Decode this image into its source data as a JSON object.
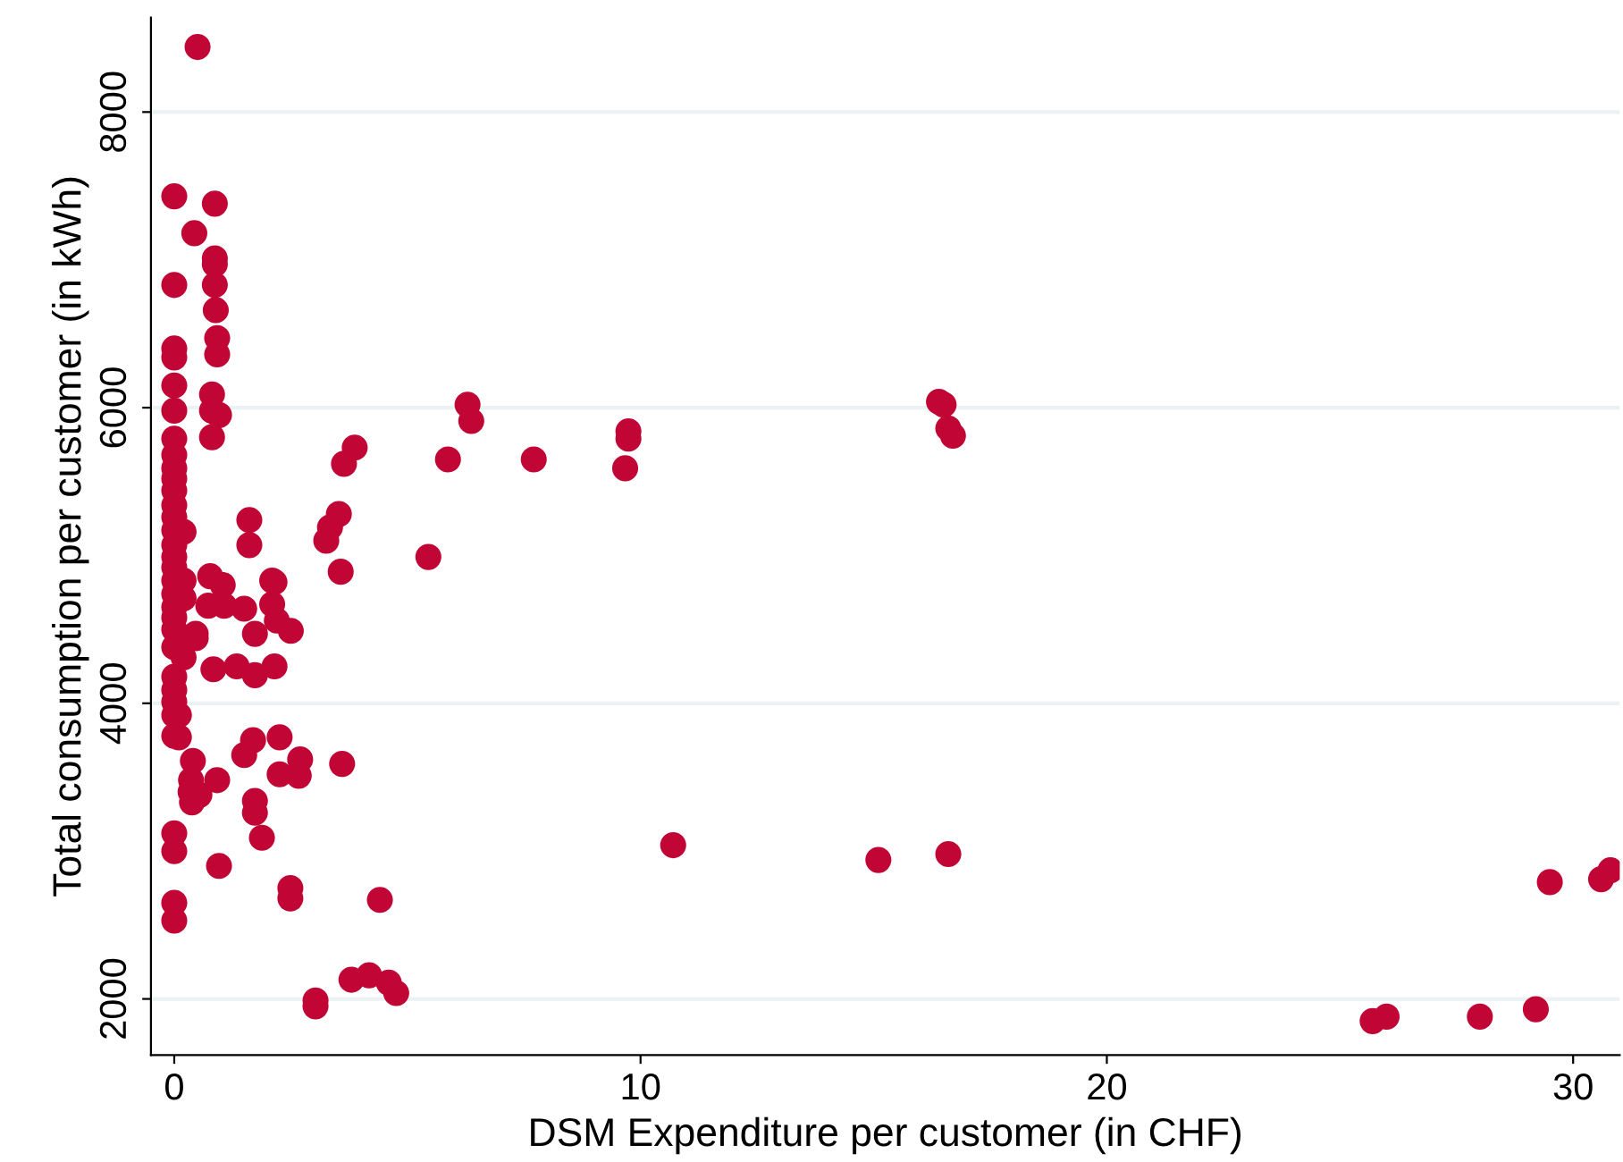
{
  "chart_data": {
    "type": "scatter",
    "xlabel": "DSM Expenditure per customer (in CHF)",
    "ylabel": "Total consumption per customer (in kWh)",
    "xlim": [
      -0.5,
      31
    ],
    "ylim": [
      1620,
      8640
    ],
    "xticks": [
      0,
      10,
      20,
      30
    ],
    "yticks": [
      2000,
      4000,
      6000,
      8000
    ],
    "grid": "y",
    "marker": "circle",
    "series": [
      {
        "color": "#c10534",
        "x": [
          0,
          0,
          0,
          0,
          0,
          0,
          0,
          0,
          0,
          0,
          0,
          0,
          0,
          0,
          0,
          0,
          0,
          0,
          0,
          0,
          0,
          0,
          0,
          0,
          0,
          0,
          0,
          0,
          0,
          0,
          0,
          0,
          0.5,
          0.43,
          0.2,
          0.2,
          0.46,
          0.36,
          0.54,
          0.87,
          0.87,
          0.87,
          0.87,
          0.89,
          0.92,
          0.92,
          0.81,
          0.81,
          0.96,
          0.81,
          0.77,
          1.04,
          2.1,
          0.73,
          1.07,
          1.5,
          2.1,
          2.2,
          2.5,
          1.73,
          0.84,
          1.34,
          1.73,
          2.15,
          0.46,
          1.61,
          1.61,
          5.45,
          3.57,
          0.1,
          1.69,
          1.5,
          2.26,
          2.26,
          2.7,
          2.67,
          3.6,
          0.4,
          0.35,
          0.38,
          0.92,
          1.73,
          1.73,
          1.88,
          0.96,
          2.49,
          2.49,
          4.41,
          3.03,
          3.03,
          3.8,
          4.18,
          4.6,
          4.76,
          6.29,
          6.37,
          3.87,
          3.64,
          5.87,
          7.71,
          9.74,
          9.74,
          9.67,
          3.53,
          3.34,
          3.26,
          2.15,
          10.7,
          15.1,
          16.6,
          16.4,
          16.5,
          16.6,
          16.7,
          25.7,
          26.0,
          28.0,
          29.2,
          29.5,
          30.6,
          30.8,
          0.2,
          0.2,
          0.1
        ],
        "values": [
          7430,
          6830,
          6400,
          6340,
          6150,
          5980,
          5790,
          5680,
          5590,
          5520,
          5440,
          5340,
          5260,
          5170,
          5070,
          4990,
          4920,
          4830,
          4740,
          4650,
          4580,
          4500,
          4380,
          4180,
          4090,
          4010,
          3920,
          3780,
          3120,
          3000,
          2650,
          2530,
          8440,
          7180,
          5160,
          4830,
          4470,
          3480,
          3380,
          7380,
          7010,
          6970,
          6830,
          6660,
          6470,
          6360,
          6090,
          5980,
          5950,
          5800,
          4860,
          4800,
          4830,
          4660,
          4660,
          4640,
          4670,
          4560,
          4490,
          4470,
          4230,
          4250,
          4190,
          4250,
          4440,
          5240,
          5070,
          4990,
          4890,
          3770,
          3750,
          3650,
          3770,
          3520,
          3620,
          3510,
          3590,
          3610,
          3400,
          3330,
          3480,
          3340,
          3260,
          3090,
          2900,
          2750,
          2680,
          2670,
          1990,
          1950,
          2130,
          2160,
          2110,
          2040,
          6020,
          5910,
          5730,
          5620,
          5650,
          5650,
          5840,
          5790,
          5590,
          5280,
          5190,
          5100,
          4820,
          3040,
          2940,
          2980,
          6040,
          6020,
          5860,
          5810,
          1850,
          1880,
          1880,
          1930,
          2790,
          2810,
          2870,
          4710,
          4310,
          3920
        ]
      }
    ]
  }
}
